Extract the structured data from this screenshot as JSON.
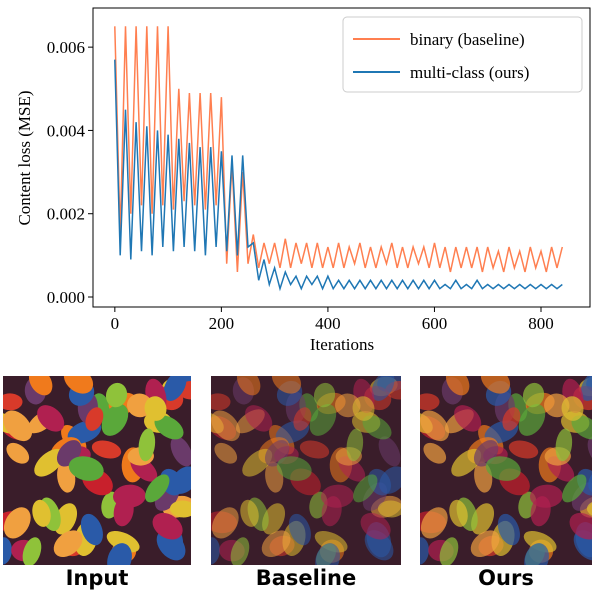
{
  "chart_data": {
    "type": "line",
    "xlabel": "Iterations",
    "ylabel": "Content loss (MSE)",
    "x": [
      0,
      10,
      20,
      30,
      40,
      50,
      60,
      70,
      80,
      90,
      100,
      110,
      120,
      130,
      140,
      150,
      160,
      170,
      180,
      190,
      200,
      210,
      220,
      230,
      240,
      250,
      260,
      270,
      280,
      290,
      300,
      310,
      320,
      330,
      340,
      350,
      360,
      370,
      380,
      390,
      400,
      410,
      420,
      430,
      440,
      450,
      460,
      470,
      480,
      490,
      500,
      510,
      520,
      530,
      540,
      550,
      560,
      570,
      580,
      590,
      600,
      610,
      620,
      630,
      640,
      650,
      660,
      670,
      680,
      690,
      700,
      710,
      720,
      730,
      740,
      750,
      760,
      770,
      780,
      790,
      800,
      810,
      820,
      830,
      840
    ],
    "series": [
      {
        "name": "binary (baseline)",
        "color": "#ff7f50",
        "values": [
          0.0065,
          0.0015,
          0.0065,
          0.002,
          0.0065,
          0.0022,
          0.0065,
          0.002,
          0.0065,
          0.0022,
          0.0065,
          0.0021,
          0.005,
          0.0023,
          0.0049,
          0.0022,
          0.0049,
          0.0021,
          0.0049,
          0.0022,
          0.0048,
          0.0008,
          0.0032,
          0.0006,
          0.003,
          0.0008,
          0.0015,
          0.0007,
          0.0013,
          0.0008,
          0.0013,
          0.0007,
          0.0014,
          0.0007,
          0.0013,
          0.0008,
          0.0013,
          0.0007,
          0.0013,
          0.0007,
          0.0012,
          0.0007,
          0.0013,
          0.0007,
          0.0012,
          0.0008,
          0.0013,
          0.0007,
          0.0012,
          0.0007,
          0.0012,
          0.0008,
          0.0013,
          0.0007,
          0.0012,
          0.0007,
          0.0012,
          0.0008,
          0.0012,
          0.0007,
          0.0013,
          0.0007,
          0.0012,
          0.0006,
          0.0012,
          0.0007,
          0.0012,
          0.0007,
          0.0012,
          0.0006,
          0.0012,
          0.0007,
          0.0011,
          0.0006,
          0.0012,
          0.0007,
          0.0011,
          0.0006,
          0.0012,
          0.0007,
          0.0011,
          0.0006,
          0.0012,
          0.0007,
          0.0012
        ]
      },
      {
        "name": "multi-class (ours)",
        "color": "#1f77b4",
        "values": [
          0.0057,
          0.001,
          0.0045,
          0.0009,
          0.0042,
          0.0011,
          0.0041,
          0.001,
          0.004,
          0.0012,
          0.0039,
          0.0011,
          0.0038,
          0.0012,
          0.0037,
          0.0011,
          0.0036,
          0.001,
          0.0036,
          0.0012,
          0.0035,
          0.0011,
          0.0034,
          0.001,
          0.0034,
          0.0012,
          0.0013,
          0.0004,
          0.0009,
          0.0003,
          0.0007,
          0.0002,
          0.0006,
          0.0003,
          0.0005,
          0.0002,
          0.0005,
          0.0003,
          0.0005,
          0.0002,
          0.0005,
          0.0002,
          0.0004,
          0.0002,
          0.0004,
          0.0002,
          0.0004,
          0.0002,
          0.0004,
          0.0002,
          0.0004,
          0.0002,
          0.0004,
          0.0002,
          0.0004,
          0.0002,
          0.0004,
          0.0002,
          0.0004,
          0.0002,
          0.0004,
          0.0002,
          0.0003,
          0.0002,
          0.0004,
          0.0002,
          0.0003,
          0.0002,
          0.0004,
          0.0002,
          0.0003,
          0.0002,
          0.0003,
          0.0002,
          0.0003,
          0.0002,
          0.0003,
          0.0002,
          0.0003,
          0.0002,
          0.0003,
          0.0002,
          0.0003,
          0.0002,
          0.0003
        ]
      }
    ],
    "xlim": [
      -41,
      892
    ],
    "ylim": [
      -0.00024,
      0.00694
    ],
    "xticks": [
      0,
      200,
      400,
      600,
      800
    ],
    "yticks": [
      {
        "value": 0,
        "label": "0.000"
      },
      0.002,
      0.004,
      0.006
    ],
    "legend": "upper right"
  },
  "images": [
    {
      "caption": "Input"
    },
    {
      "caption": "Baseline"
    },
    {
      "caption": "Ours"
    }
  ]
}
